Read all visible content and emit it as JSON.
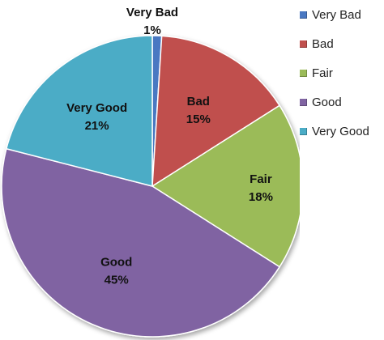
{
  "chart_data": {
    "type": "pie",
    "title": "",
    "categories": [
      "Very Bad",
      "Bad",
      "Fair",
      "Good",
      "Very Good"
    ],
    "values": [
      1,
      15,
      18,
      45,
      21
    ],
    "value_labels": [
      "1%",
      "15%",
      "18%",
      "45%",
      "21%"
    ],
    "colors": [
      "#4a78c2",
      "#c0504d",
      "#9bbb59",
      "#8064a2",
      "#4bacc6"
    ],
    "legend_position": "right"
  }
}
